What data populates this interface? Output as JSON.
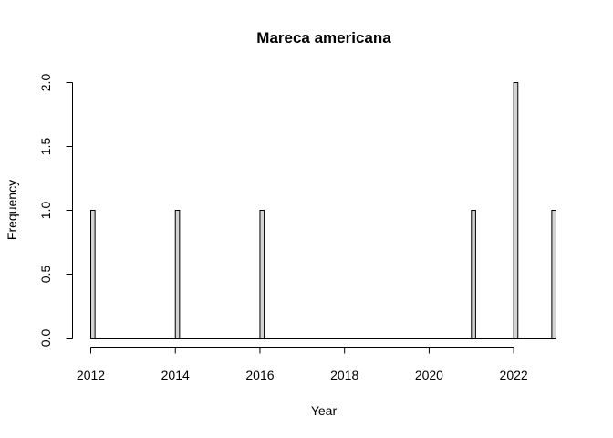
{
  "chart_data": {
    "type": "bar",
    "title": "Mareca americana",
    "xlabel": "Year",
    "ylabel": "Frequency",
    "xlim": [
      2012,
      2023
    ],
    "ylim": [
      0,
      2
    ],
    "x_ticks": [
      "2012",
      "2014",
      "2016",
      "2018",
      "2020",
      "2022"
    ],
    "y_ticks": [
      "0.0",
      "0.5",
      "1.0",
      "1.5",
      "2.0"
    ],
    "bin_width": 0.1,
    "bar_color": "#d3d3d3",
    "series": [
      {
        "x": [
          2012,
          2014,
          2016,
          2021,
          2022,
          2023
        ],
        "values": [
          1,
          1,
          1,
          1,
          2,
          1
        ]
      }
    ]
  }
}
